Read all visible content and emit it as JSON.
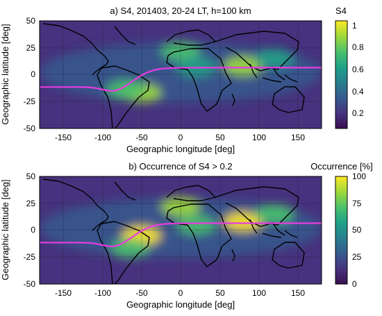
{
  "colors": {
    "magnetic_equator": "#e83ce0",
    "coastline": "#000000",
    "colormap": [
      "#3b0f52",
      "#46327e",
      "#365c8d",
      "#277f8e",
      "#1fa187",
      "#4ac16d",
      "#a0da39",
      "#fde725"
    ]
  },
  "chart_data": [
    {
      "type": "heatmap",
      "title": "a) S4, 201403, 20-24 LT, h=100 km",
      "xlabel": "Geographic longitude [deg]",
      "ylabel": "Geographic latitude [deg]",
      "xlim": [
        -180,
        180
      ],
      "ylim": [
        -50,
        50
      ],
      "x_ticks": [
        "-150",
        "-100",
        "-50",
        "0",
        "50",
        "100",
        "150"
      ],
      "y_ticks": [
        "50",
        "25",
        "0",
        "-25",
        "-50"
      ],
      "colorbar": {
        "label": "S4",
        "range": [
          0.05,
          1.03
        ],
        "ticks": [
          "1",
          "0.8",
          "0.6",
          "0.4",
          "0.2"
        ]
      },
      "grid": true,
      "overlays": [
        "coastlines",
        "magnetic equator (magenta line)"
      ],
      "hotspots": [
        {
          "lon": -50,
          "lat": -17,
          "value": 0.85
        },
        {
          "lon": -70,
          "lat": -14,
          "value": 0.7
        },
        {
          "lon": 80,
          "lat": 8,
          "value": 0.9
        },
        {
          "lon": 0,
          "lat": 22,
          "value": 0.7
        },
        {
          "lon": 20,
          "lat": 7,
          "value": 0.65
        },
        {
          "lon": 120,
          "lat": 15,
          "value": 0.55
        }
      ]
    },
    {
      "type": "heatmap",
      "title": "b) Occurrence of S4 > 0.2",
      "xlabel": "Geographic longitude [deg]",
      "ylabel": "Geographic latitude [deg]",
      "xlim": [
        -180,
        180
      ],
      "ylim": [
        -50,
        50
      ],
      "x_ticks": [
        "-150",
        "-100",
        "-50",
        "0",
        "50",
        "100",
        "150"
      ],
      "y_ticks": [
        "50",
        "25",
        "0",
        "-25",
        "-50"
      ],
      "colorbar": {
        "label": "Occurrence [%]",
        "range": [
          0,
          100
        ],
        "ticks": [
          "100",
          "75",
          "50",
          "25",
          "0"
        ]
      },
      "grid": true,
      "overlays": [
        "coastlines",
        "magnetic equator (magenta line)"
      ],
      "hotspots": [
        {
          "lon": -50,
          "lat": -5,
          "value": 95
        },
        {
          "lon": 0,
          "lat": 22,
          "value": 85
        },
        {
          "lon": 80,
          "lat": 8,
          "value": 95
        },
        {
          "lon": 20,
          "lat": 5,
          "value": 75
        },
        {
          "lon": -65,
          "lat": -17,
          "value": 70
        },
        {
          "lon": 120,
          "lat": 15,
          "value": 75
        }
      ]
    }
  ]
}
